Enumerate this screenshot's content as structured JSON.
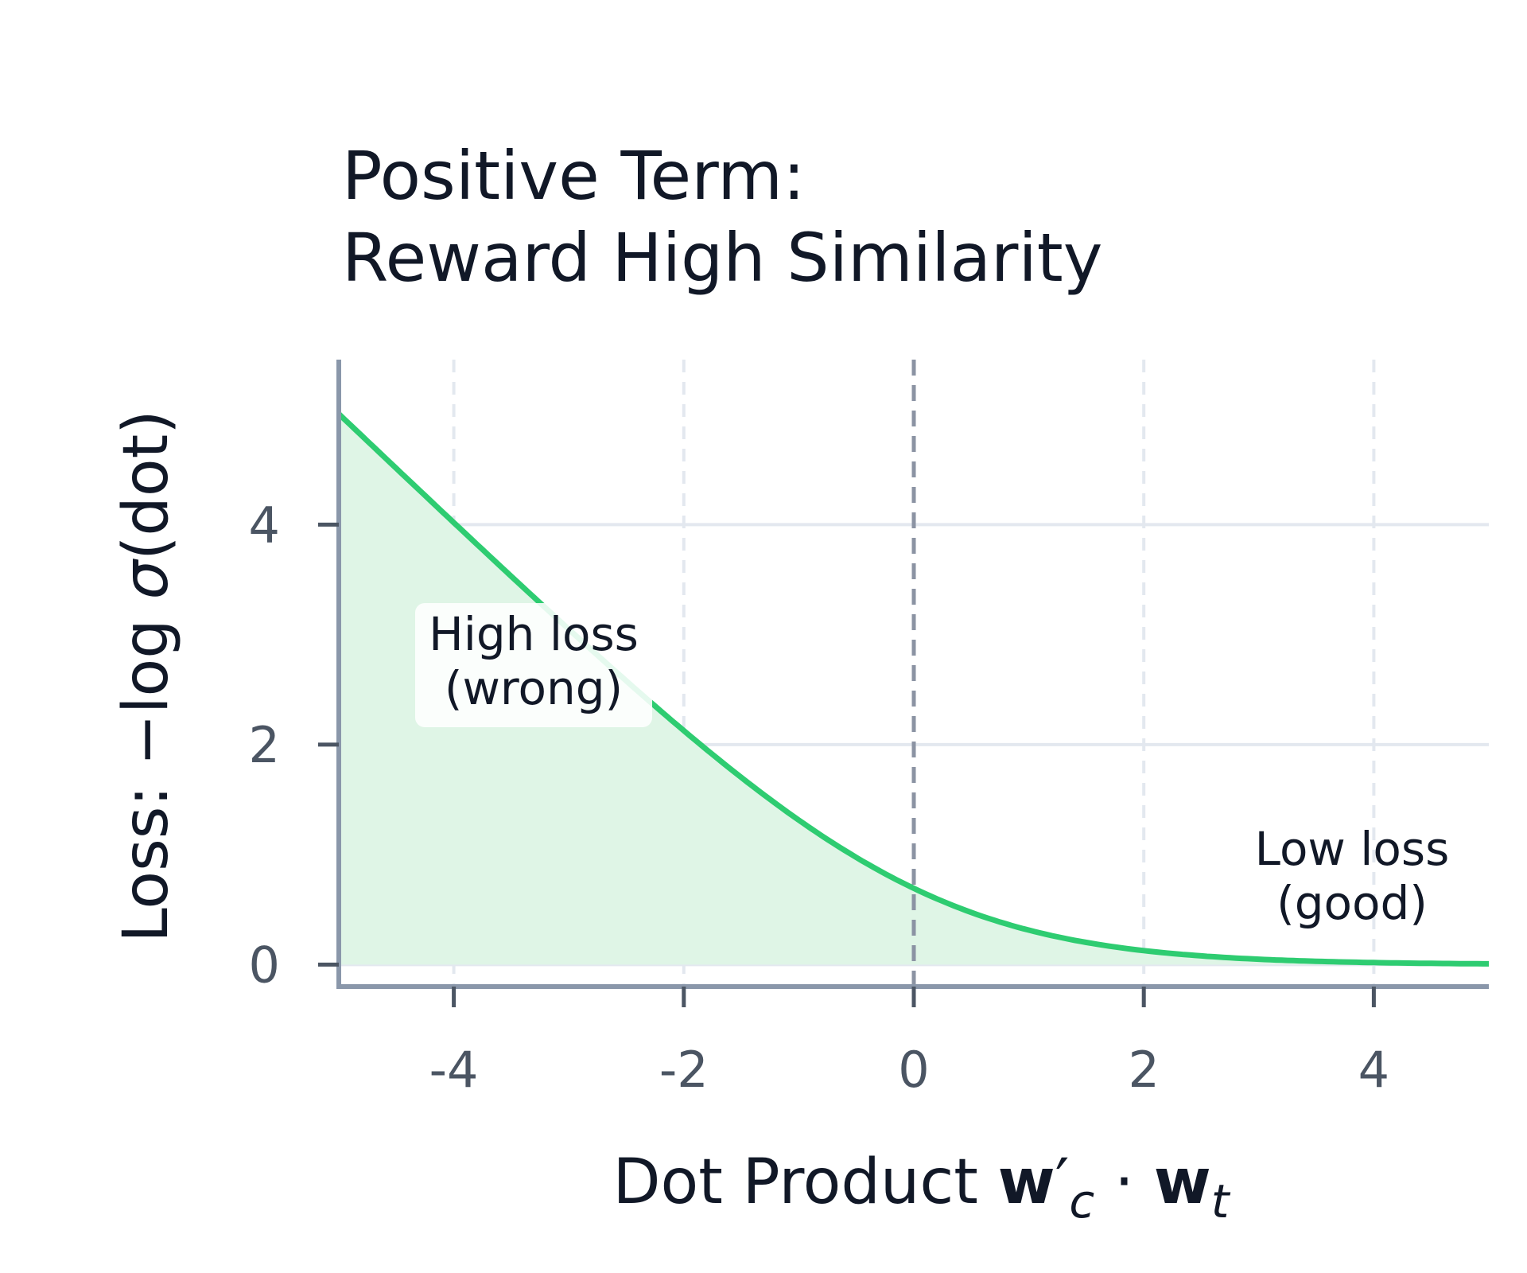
{
  "chart_data": {
    "type": "area",
    "title_lines": [
      "Positive Term:",
      "Reward High Similarity"
    ],
    "xlabel": {
      "prefix": "Dot Product ",
      "w1": "w",
      "prime": "′",
      "sub1": "c",
      "dot": " · ",
      "w2": "w",
      "sub2": "t"
    },
    "ylabel": {
      "prefix": "Loss: −log ",
      "sigma": "σ",
      "suffix": "(dot)"
    },
    "xlim": [
      -5,
      5
    ],
    "ylim": [
      -0.2,
      5.5
    ],
    "xticks": [
      -4,
      -2,
      0,
      2,
      4
    ],
    "xtick_labels": [
      "-4",
      "-2",
      "0",
      "2",
      "4"
    ],
    "yticks": [
      0,
      2,
      4
    ],
    "ytick_labels": [
      "0",
      "2",
      "4"
    ],
    "grid": true,
    "reference_line_x": 0,
    "series": [
      {
        "function": "-log(sigmoid(x))",
        "x": [
          -5,
          -4.5,
          -4,
          -3.5,
          -3,
          -2.5,
          -2,
          -1.5,
          -1,
          -0.5,
          0,
          0.5,
          1,
          1.5,
          2,
          2.5,
          3,
          3.5,
          4,
          4.5,
          5
        ],
        "y": [
          5.007,
          4.511,
          4.018,
          3.53,
          3.049,
          2.579,
          2.127,
          1.701,
          1.313,
          0.974,
          0.693,
          0.474,
          0.313,
          0.201,
          0.127,
          0.079,
          0.049,
          0.03,
          0.018,
          0.011,
          0.007
        ],
        "color": "#2ecc71",
        "fill": "#dff5e6"
      }
    ],
    "annotations": [
      {
        "lines": [
          "High loss",
          "(wrong)"
        ],
        "x": -3.3,
        "y": 3.0,
        "boxed": true
      },
      {
        "lines": [
          "Low loss",
          "(good)"
        ],
        "x": 3.8,
        "y": 1.0,
        "boxed": false
      }
    ]
  }
}
